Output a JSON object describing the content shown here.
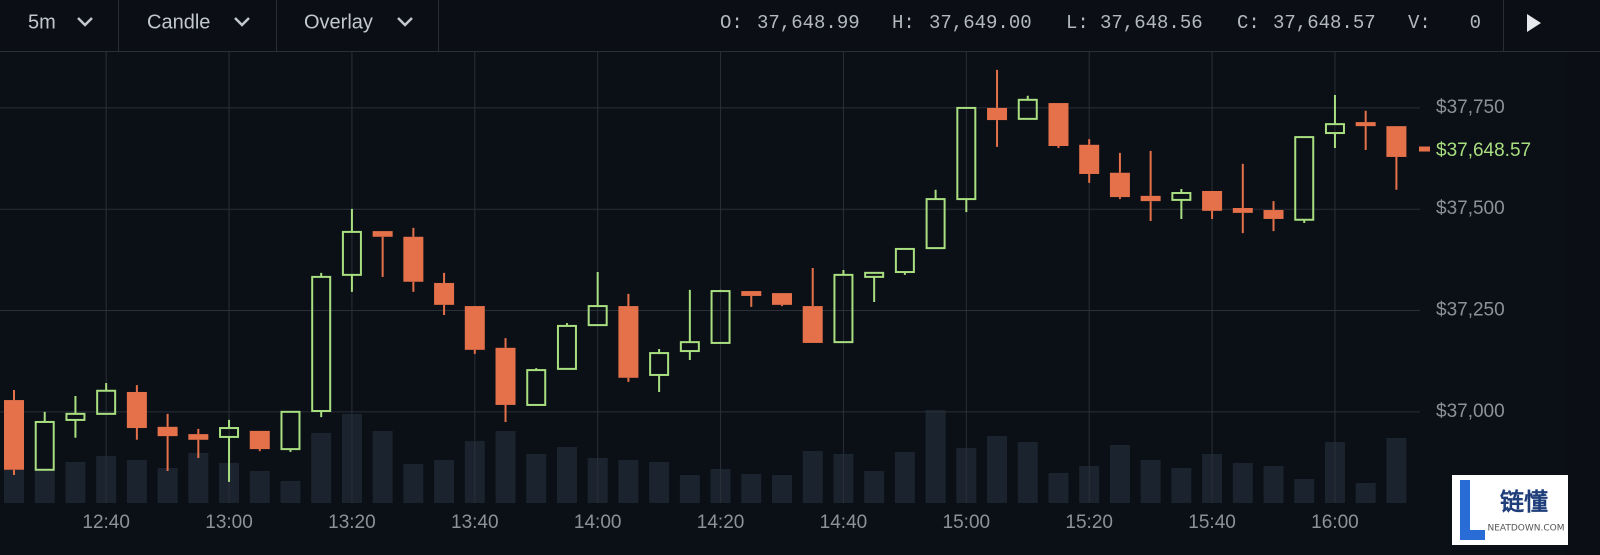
{
  "toolbar": {
    "interval": "5m",
    "style": "Candle",
    "overlay": "Overlay",
    "ohlc": [
      {
        "key": "O:",
        "value": "37,648.99"
      },
      {
        "key": "H:",
        "value": "37,649.00"
      },
      {
        "key": "L:",
        "value": "37,648.56"
      },
      {
        "key": "C:",
        "value": "37,648.57"
      },
      {
        "key": "V:",
        "value": "0"
      }
    ]
  },
  "watermark": {
    "title": "链懂",
    "subtitle": "NEATDOWN.COM"
  },
  "chart_data": {
    "type": "candlestick",
    "categories": [
      null,
      null,
      null,
      "12:40",
      null,
      null,
      null,
      "13:00",
      null,
      null,
      null,
      "13:20",
      null,
      null,
      null,
      "13:40",
      null,
      null,
      null,
      "14:00",
      null,
      null,
      null,
      "14:20",
      null,
      null,
      null,
      "14:40",
      null,
      null,
      null,
      "15:00",
      null,
      null,
      null,
      "15:20",
      null,
      null,
      null,
      "15:40",
      null,
      null,
      null,
      "16:00",
      null,
      null
    ],
    "open": [
      37029,
      36857,
      36980,
      36995,
      37049,
      36963,
      36945,
      36938,
      36953,
      36908,
      37002,
      37338,
      37446,
      37432,
      37318,
      37261,
      37158,
      37017,
      37106,
      37214,
      37261,
      37091,
      37150,
      37170,
      37298,
      37293,
      37261,
      37172,
      37333,
      37345,
      37404,
      37525,
      37750,
      37723,
      37762,
      37659,
      37590,
      37533,
      37523,
      37545,
      37503,
      37498,
      37474,
      37688,
      37715,
      37705
    ],
    "high": [
      37054,
      37000,
      37039,
      37071,
      37066,
      36995,
      36958,
      36980,
      36953,
      37000,
      37343,
      37501,
      37446,
      37454,
      37343,
      37261,
      37182,
      37108,
      37219,
      37345,
      37291,
      37155,
      37301,
      37301,
      37298,
      37293,
      37355,
      37350,
      37343,
      37402,
      37548,
      37750,
      37844,
      37780,
      37762,
      37673,
      37639,
      37644,
      37550,
      37545,
      37612,
      37520,
      37678,
      37782,
      37743,
      37705
    ],
    "low": [
      36844,
      36857,
      36936,
      36995,
      36931,
      36854,
      36886,
      36827,
      36903,
      36901,
      36987,
      37296,
      37333,
      37296,
      37239,
      37143,
      36975,
      37015,
      37106,
      37214,
      37074,
      37049,
      37128,
      37170,
      37259,
      37261,
      37170,
      37172,
      37271,
      37338,
      37404,
      37493,
      37654,
      37723,
      37651,
      37565,
      37525,
      37471,
      37476,
      37476,
      37441,
      37446,
      37466,
      37651,
      37646,
      37548
    ],
    "close": [
      36857,
      36975,
      36995,
      37052,
      36960,
      36940,
      36931,
      36960,
      36908,
      37000,
      37333,
      37444,
      37432,
      37321,
      37264,
      37153,
      37017,
      37103,
      37212,
      37261,
      37084,
      37145,
      37172,
      37298,
      37286,
      37264,
      37170,
      37338,
      37343,
      37402,
      37525,
      37750,
      37720,
      37770,
      37656,
      37587,
      37530,
      37520,
      37540,
      37496,
      37491,
      37476,
      37678,
      37710,
      37705,
      37629
    ],
    "volume": [
      33,
      33,
      41,
      47,
      43,
      35,
      50,
      40,
      32,
      22,
      70,
      89,
      72,
      39,
      43,
      62,
      72,
      49,
      56,
      45,
      43,
      41,
      28,
      34,
      29,
      28,
      52,
      49,
      32,
      51,
      93,
      55,
      67,
      61,
      30,
      37,
      58,
      43,
      35,
      49,
      40,
      37,
      24,
      61,
      20,
      65
    ],
    "up_color": "#a9df80",
    "down_color": "#e4714a",
    "volume_color": "#1b242e",
    "ylim": [
      36775,
      37888
    ],
    "yticks": [
      {
        "value": 37000,
        "label": "$37,000"
      },
      {
        "value": 37250,
        "label": "$37,250"
      },
      {
        "value": 37500,
        "label": "$37,500"
      },
      {
        "value": 37750,
        "label": "$37,750"
      }
    ],
    "last_price": {
      "value": 37648.57,
      "label": "$37,648.57"
    },
    "grid": true
  }
}
